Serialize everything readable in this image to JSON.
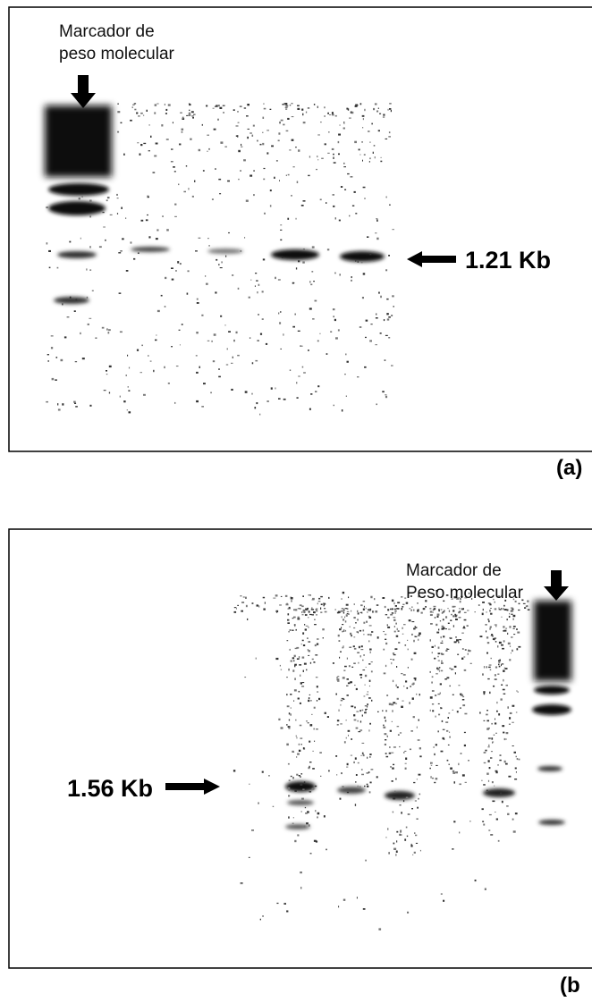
{
  "panel_a": {
    "marker_label_line1": "Marcador de",
    "marker_label_line2": "peso molecular",
    "size_label": "1.21 Kb",
    "panel_label": "(a)"
  },
  "panel_b": {
    "marker_label_line1": "Marcador de",
    "marker_label_line2": "Peso molecular",
    "size_label": "1.56 Kb",
    "panel_label": "(b"
  }
}
